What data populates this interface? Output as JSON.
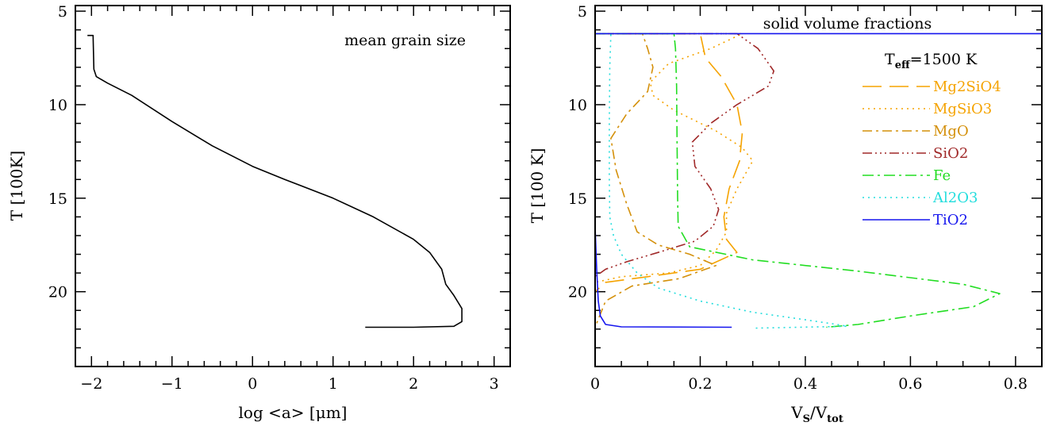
{
  "chart_data": [
    {
      "type": "line",
      "annotation": "mean grain size",
      "xlabel": "log <a> [μm]",
      "ylabel": "T [100K]",
      "xlim": [
        -2.2,
        3.2
      ],
      "ylim": [
        24,
        4.7
      ],
      "y_inverted": true,
      "xticks": [
        -2,
        -1,
        0,
        1,
        2,
        3
      ],
      "xtick_labels": [
        "−2",
        "−1",
        "0",
        "1",
        "2",
        "3"
      ],
      "yticks": [
        5,
        10,
        15,
        20
      ],
      "ytick_labels": [
        "5",
        "10",
        "15",
        "20"
      ],
      "grid": false,
      "series": [
        {
          "color": "#000000",
          "dash": "",
          "points": [
            [
              -2.05,
              6.3
            ],
            [
              -1.98,
              6.3
            ],
            [
              -1.97,
              8.1
            ],
            [
              -1.94,
              8.5
            ],
            [
              -1.8,
              8.85
            ],
            [
              -1.5,
              9.5
            ],
            [
              -1.0,
              10.9
            ],
            [
              -0.5,
              12.2
            ],
            [
              0.0,
              13.3
            ],
            [
              0.4,
              14.0
            ],
            [
              1.0,
              15.0
            ],
            [
              1.5,
              16.0
            ],
            [
              2.0,
              17.2
            ],
            [
              2.2,
              17.9
            ],
            [
              2.35,
              18.8
            ],
            [
              2.4,
              19.6
            ],
            [
              2.5,
              20.2
            ],
            [
              2.6,
              20.9
            ],
            [
              2.6,
              21.6
            ],
            [
              2.5,
              21.85
            ],
            [
              2.0,
              21.9
            ],
            [
              1.4,
              21.9
            ]
          ]
        }
      ]
    },
    {
      "type": "line",
      "annotation": "solid volume fractions",
      "teff_label": "T",
      "teff_sub": "eff",
      "teff_value": "=1500 K",
      "xlabel_main": "V",
      "xlabel_sub1": "S",
      "xlabel_slash": "/V",
      "xlabel_sub2": "tot",
      "ylabel": "T [100 K]",
      "xlim": [
        0,
        0.85
      ],
      "ylim": [
        24,
        4.7
      ],
      "y_inverted": true,
      "xticks": [
        0,
        0.2,
        0.4,
        0.6,
        0.8
      ],
      "xtick_labels": [
        "0",
        "0.2",
        "0.4",
        "0.6",
        "0.8"
      ],
      "yticks": [
        5,
        10,
        15,
        20
      ],
      "ytick_labels": [
        "5",
        "10",
        "15",
        "20"
      ],
      "grid": false,
      "legend_position": "top-right",
      "series": [
        {
          "name": "Mg2SiO4",
          "color": "#f5a300",
          "dash": "24,10",
          "points": [
            [
              0.0,
              6.2
            ],
            [
              0.2,
              6.2
            ],
            [
              0.21,
              7.5
            ],
            [
              0.24,
              8.5
            ],
            [
              0.27,
              10.0
            ],
            [
              0.28,
              11.5
            ],
            [
              0.275,
              13.0
            ],
            [
              0.255,
              14.5
            ],
            [
              0.245,
              16.0
            ],
            [
              0.25,
              17.2
            ],
            [
              0.27,
              17.9
            ],
            [
              0.2,
              18.8
            ],
            [
              0.1,
              19.2
            ],
            [
              0.02,
              19.5
            ],
            [
              0.0,
              20.0
            ],
            [
              0.0,
              21.9
            ]
          ]
        },
        {
          "name": "MgSiO3",
          "color": "#f5a300",
          "dash": "2,5",
          "points": [
            [
              0.0,
              6.2
            ],
            [
              0.28,
              6.2
            ],
            [
              0.22,
              7.0
            ],
            [
              0.14,
              7.8
            ],
            [
              0.105,
              8.8
            ],
            [
              0.11,
              9.5
            ],
            [
              0.15,
              10.3
            ],
            [
              0.23,
              11.4
            ],
            [
              0.28,
              12.3
            ],
            [
              0.3,
              13.0
            ],
            [
              0.27,
              14.5
            ],
            [
              0.25,
              15.8
            ],
            [
              0.25,
              16.8
            ],
            [
              0.23,
              17.8
            ],
            [
              0.2,
              18.6
            ],
            [
              0.14,
              19.0
            ],
            [
              0.05,
              19.2
            ],
            [
              0.0,
              19.5
            ],
            [
              0.0,
              21.9
            ]
          ]
        },
        {
          "name": "MgO",
          "color": "#d4900a",
          "dash": "12,5,3,5",
          "points": [
            [
              0.0,
              6.2
            ],
            [
              0.09,
              6.2
            ],
            [
              0.1,
              7.0
            ],
            [
              0.11,
              8.0
            ],
            [
              0.1,
              9.3
            ],
            [
              0.06,
              10.5
            ],
            [
              0.03,
              11.8
            ],
            [
              0.04,
              13.5
            ],
            [
              0.06,
              15.3
            ],
            [
              0.08,
              16.8
            ],
            [
              0.12,
              17.5
            ],
            [
              0.18,
              18.0
            ],
            [
              0.23,
              18.6
            ],
            [
              0.16,
              19.3
            ],
            [
              0.07,
              19.7
            ],
            [
              0.02,
              20.5
            ],
            [
              0.0,
              21.9
            ]
          ]
        },
        {
          "name": "SiO2",
          "color": "#a02828",
          "dash": "12,4,2,4,2,4,2,4",
          "points": [
            [
              0.0,
              6.2
            ],
            [
              0.27,
              6.2
            ],
            [
              0.31,
              7.0
            ],
            [
              0.34,
              8.2
            ],
            [
              0.33,
              9.0
            ],
            [
              0.27,
              10.0
            ],
            [
              0.22,
              11.0
            ],
            [
              0.185,
              12.0
            ],
            [
              0.19,
              13.3
            ],
            [
              0.22,
              14.5
            ],
            [
              0.235,
              15.6
            ],
            [
              0.225,
              16.5
            ],
            [
              0.19,
              17.3
            ],
            [
              0.12,
              17.9
            ],
            [
              0.06,
              18.4
            ],
            [
              0.02,
              18.8
            ],
            [
              0.0,
              19.2
            ],
            [
              0.0,
              21.9
            ]
          ]
        },
        {
          "name": "Fe",
          "color": "#22dd22",
          "dash": "14,5,3,5",
          "points": [
            [
              0.0,
              6.2
            ],
            [
              0.15,
              6.2
            ],
            [
              0.153,
              7.0
            ],
            [
              0.155,
              9.0
            ],
            [
              0.156,
              12.0
            ],
            [
              0.157,
              15.0
            ],
            [
              0.158,
              16.5
            ],
            [
              0.18,
              17.6
            ],
            [
              0.3,
              18.3
            ],
            [
              0.5,
              18.9
            ],
            [
              0.7,
              19.6
            ],
            [
              0.77,
              20.1
            ],
            [
              0.72,
              20.8
            ],
            [
              0.6,
              21.3
            ],
            [
              0.5,
              21.75
            ],
            [
              0.44,
              21.9
            ]
          ]
        },
        {
          "name": "Al2O3",
          "color": "#22dddd",
          "dash": "2,5",
          "points": [
            [
              0.0,
              6.2
            ],
            [
              0.03,
              6.2
            ],
            [
              0.028,
              8.0
            ],
            [
              0.027,
              11.0
            ],
            [
              0.027,
              14.0
            ],
            [
              0.028,
              16.0
            ],
            [
              0.035,
              17.0
            ],
            [
              0.05,
              18.0
            ],
            [
              0.08,
              19.0
            ],
            [
              0.12,
              19.8
            ],
            [
              0.2,
              20.5
            ],
            [
              0.3,
              21.1
            ],
            [
              0.4,
              21.5
            ],
            [
              0.46,
              21.75
            ],
            [
              0.48,
              21.85
            ],
            [
              0.3,
              21.95
            ]
          ]
        },
        {
          "name": "TiO2",
          "color": "#1515ee",
          "dash": "",
          "points": [
            [
              0.85,
              6.2
            ],
            [
              0.0,
              6.2
            ],
            [
              0.0,
              16.5
            ],
            [
              0.003,
              18.8
            ],
            [
              0.006,
              20.5
            ],
            [
              0.01,
              21.3
            ],
            [
              0.02,
              21.75
            ],
            [
              0.05,
              21.88
            ],
            [
              0.26,
              21.9
            ]
          ]
        }
      ]
    }
  ]
}
